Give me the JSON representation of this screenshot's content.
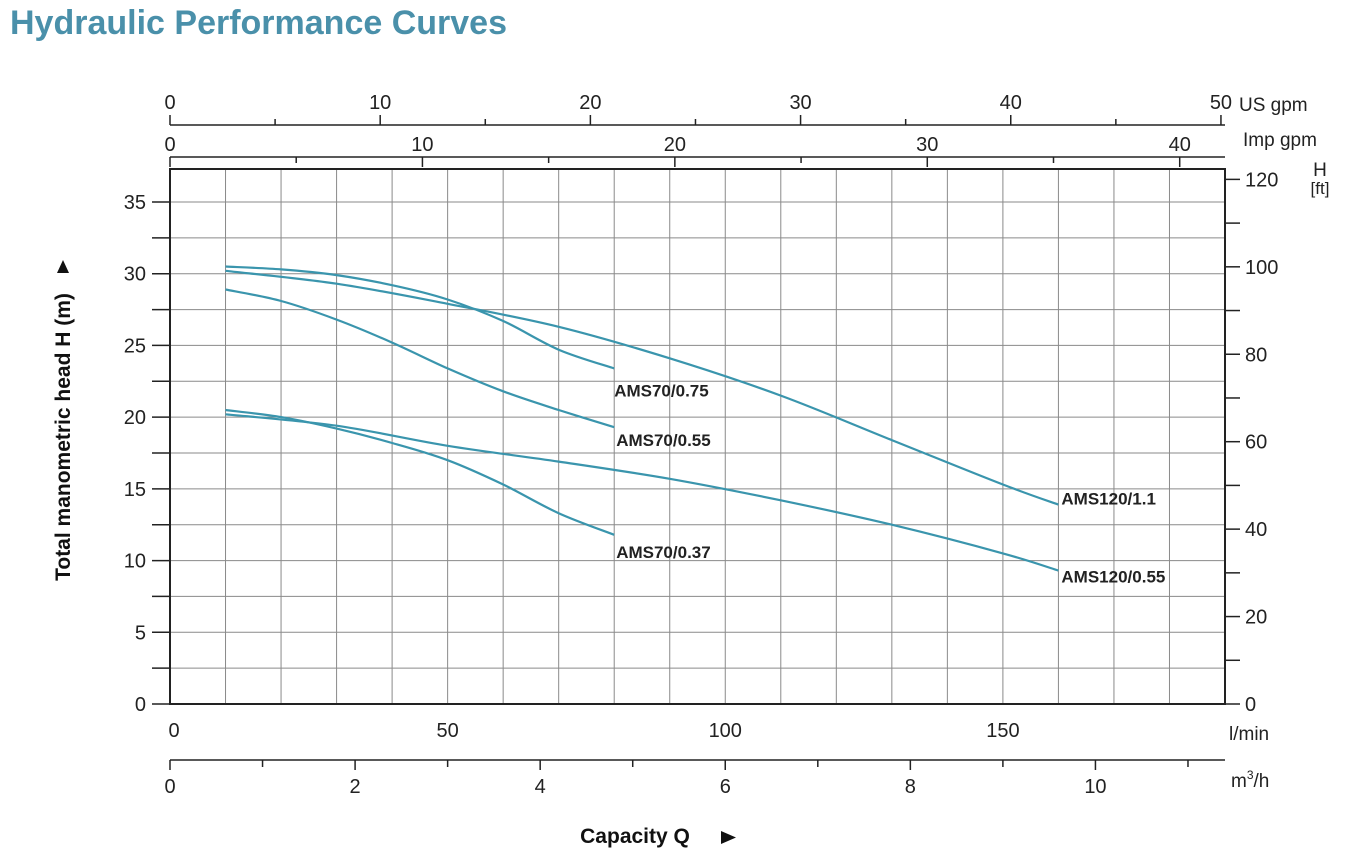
{
  "title": "Hydraulic Performance Curves",
  "colors": {
    "curve": "#3a95ad",
    "title": "#4a90aa",
    "grid": "#8a8a8a"
  },
  "chart_data": {
    "type": "line",
    "x_unit": "l/min",
    "y_unit": "m",
    "xlim": [
      0,
      190
    ],
    "ylim": [
      0,
      37.3
    ],
    "grid": true,
    "axes": {
      "y_left": {
        "label": "Total manometric head H (m)",
        "ticks": [
          0,
          5,
          10,
          15,
          20,
          25,
          30,
          35
        ]
      },
      "y_right": {
        "unit_label_top": "H",
        "unit_label_bottom": "[ft]",
        "ticks": [
          0,
          20,
          40,
          60,
          80,
          100,
          120
        ]
      },
      "x_bottom_lmin": {
        "unit": "l/min",
        "ticks": [
          0,
          50,
          100,
          150
        ]
      },
      "x_bottom_m3h": {
        "unit_base": "m",
        "unit_sup": "3",
        "unit_tail": "/h",
        "ticks": [
          0,
          2,
          4,
          6,
          8,
          10
        ]
      },
      "x_top_usgpm": {
        "unit": "US gpm",
        "ticks": [
          0,
          10,
          20,
          30,
          40,
          50
        ]
      },
      "x_top_impgpm": {
        "unit": "Imp gpm",
        "ticks": [
          0,
          10,
          20,
          30,
          40
        ]
      },
      "x_title": "Capacity Q"
    },
    "series": [
      {
        "name": "AMS70/0.75",
        "x": [
          10,
          20,
          30,
          40,
          50,
          60,
          70,
          80
        ],
        "y": [
          30.5,
          30.3,
          29.9,
          29.2,
          28.2,
          26.7,
          24.7,
          23.4
        ]
      },
      {
        "name": "AMS70/0.55",
        "x": [
          10,
          20,
          30,
          40,
          50,
          60,
          70,
          80
        ],
        "y": [
          28.9,
          28.1,
          26.8,
          25.2,
          23.4,
          21.8,
          20.5,
          19.3
        ]
      },
      {
        "name": "AMS70/0.37",
        "x": [
          10,
          20,
          30,
          40,
          50,
          60,
          70,
          80
        ],
        "y": [
          20.5,
          20.0,
          19.2,
          18.2,
          17.0,
          15.3,
          13.3,
          11.8
        ]
      },
      {
        "name": "AMS120/1.1",
        "x": [
          10,
          30,
          50,
          70,
          90,
          110,
          130,
          150,
          160
        ],
        "y": [
          30.2,
          29.3,
          27.9,
          26.3,
          24.1,
          21.5,
          18.4,
          15.3,
          13.9
        ]
      },
      {
        "name": "AMS120/0.55",
        "x": [
          10,
          30,
          50,
          70,
          90,
          110,
          130,
          150,
          160
        ],
        "y": [
          20.2,
          19.4,
          18.0,
          16.9,
          15.7,
          14.2,
          12.5,
          10.5,
          9.3
        ]
      }
    ]
  }
}
